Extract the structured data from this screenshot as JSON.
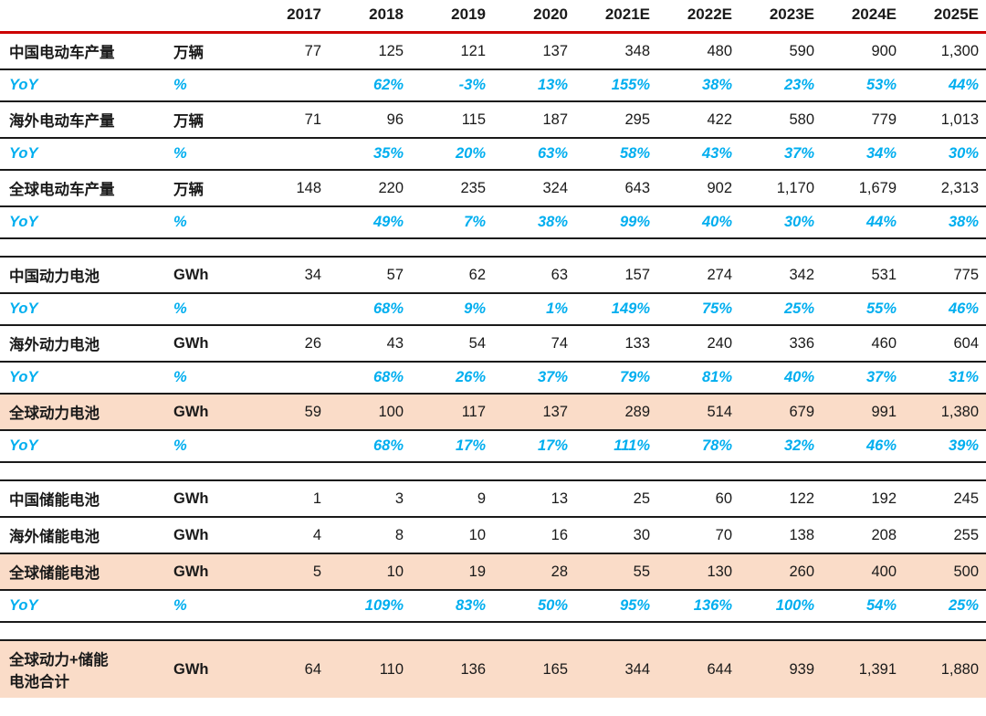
{
  "colors": {
    "header_rule_red": "#cc0000",
    "yoy_cyan": "#00aeef",
    "highlight_peach": "#fadcc8",
    "row_rule_black": "#1a1a1a"
  },
  "chart_data": {
    "type": "table",
    "label_header": "",
    "unit_header": "",
    "columns": [
      "2017",
      "2018",
      "2019",
      "2020",
      "2021E",
      "2022E",
      "2023E",
      "2024E",
      "2025E"
    ],
    "rows": [
      {
        "label": "中国电动车产量",
        "unit": "万辆",
        "style": "data",
        "highlight": false,
        "values": [
          "77",
          "125",
          "121",
          "137",
          "348",
          "480",
          "590",
          "900",
          "1,300"
        ]
      },
      {
        "label": "YoY",
        "unit": "%",
        "style": "yoy",
        "highlight": false,
        "values": [
          "",
          "62%",
          "-3%",
          "13%",
          "155%",
          "38%",
          "23%",
          "53%",
          "44%"
        ]
      },
      {
        "label": "海外电动车产量",
        "unit": "万辆",
        "style": "data",
        "highlight": false,
        "values": [
          "71",
          "96",
          "115",
          "187",
          "295",
          "422",
          "580",
          "779",
          "1,013"
        ]
      },
      {
        "label": "YoY",
        "unit": "%",
        "style": "yoy",
        "highlight": false,
        "values": [
          "",
          "35%",
          "20%",
          "63%",
          "58%",
          "43%",
          "37%",
          "34%",
          "30%"
        ]
      },
      {
        "label": "全球电动车产量",
        "unit": "万辆",
        "style": "data",
        "highlight": false,
        "values": [
          "148",
          "220",
          "235",
          "324",
          "643",
          "902",
          "1,170",
          "1,679",
          "2,313"
        ]
      },
      {
        "label": "YoY",
        "unit": "%",
        "style": "yoy",
        "highlight": false,
        "values": [
          "",
          "49%",
          "7%",
          "38%",
          "99%",
          "40%",
          "30%",
          "44%",
          "38%"
        ]
      },
      {
        "style": "spacer"
      },
      {
        "label": "中国动力电池",
        "unit": "GWh",
        "style": "data",
        "highlight": false,
        "values": [
          "34",
          "57",
          "62",
          "63",
          "157",
          "274",
          "342",
          "531",
          "775"
        ]
      },
      {
        "label": "YoY",
        "unit": "%",
        "style": "yoy",
        "highlight": false,
        "values": [
          "",
          "68%",
          "9%",
          "1%",
          "149%",
          "75%",
          "25%",
          "55%",
          "46%"
        ]
      },
      {
        "label": "海外动力电池",
        "unit": "GWh",
        "style": "data",
        "highlight": false,
        "values": [
          "26",
          "43",
          "54",
          "74",
          "133",
          "240",
          "336",
          "460",
          "604"
        ]
      },
      {
        "label": "YoY",
        "unit": "%",
        "style": "yoy",
        "highlight": false,
        "values": [
          "",
          "68%",
          "26%",
          "37%",
          "79%",
          "81%",
          "40%",
          "37%",
          "31%"
        ]
      },
      {
        "label": "全球动力电池",
        "unit": "GWh",
        "style": "data",
        "highlight": true,
        "values": [
          "59",
          "100",
          "117",
          "137",
          "289",
          "514",
          "679",
          "991",
          "1,380"
        ]
      },
      {
        "label": "YoY",
        "unit": "%",
        "style": "yoy",
        "highlight": false,
        "values": [
          "",
          "68%",
          "17%",
          "17%",
          "111%",
          "78%",
          "32%",
          "46%",
          "39%"
        ]
      },
      {
        "style": "spacer"
      },
      {
        "label": "中国储能电池",
        "unit": "GWh",
        "style": "data",
        "highlight": false,
        "values": [
          "1",
          "3",
          "9",
          "13",
          "25",
          "60",
          "122",
          "192",
          "245"
        ]
      },
      {
        "label": "海外储能电池",
        "unit": "GWh",
        "style": "data",
        "highlight": false,
        "values": [
          "4",
          "8",
          "10",
          "16",
          "30",
          "70",
          "138",
          "208",
          "255"
        ]
      },
      {
        "label": "全球储能电池",
        "unit": "GWh",
        "style": "data",
        "highlight": true,
        "values": [
          "5",
          "10",
          "19",
          "28",
          "55",
          "130",
          "260",
          "400",
          "500"
        ]
      },
      {
        "label": "YoY",
        "unit": "%",
        "style": "yoy",
        "highlight": false,
        "values": [
          "",
          "109%",
          "83%",
          "50%",
          "95%",
          "136%",
          "100%",
          "54%",
          "25%"
        ]
      },
      {
        "style": "spacer"
      },
      {
        "label": "全球动力+储能\n电池合计",
        "unit": "GWh",
        "style": "data",
        "highlight": true,
        "values": [
          "64",
          "110",
          "136",
          "165",
          "344",
          "644",
          "939",
          "1,391",
          "1,880"
        ]
      }
    ]
  }
}
